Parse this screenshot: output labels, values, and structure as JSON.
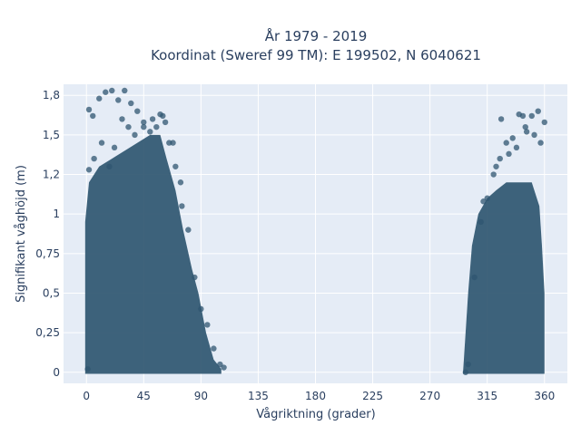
{
  "chart_data": {
    "type": "scatter",
    "title_lines": [
      "År 1979 - 2019",
      "Koordinat (Sweref 99 TM): E 199502, N 6040621"
    ],
    "xlabel": "Vågriktning (grader)",
    "ylabel": "Signifikant våghöjd (m)",
    "xlim": [
      -18,
      378
    ],
    "ylim": [
      -0.07,
      1.82
    ],
    "x_ticks": [
      0,
      45,
      90,
      135,
      180,
      225,
      270,
      315,
      360
    ],
    "x_tick_labels": [
      "0",
      "45",
      "90",
      "135",
      "180",
      "225",
      "270",
      "315",
      "360"
    ],
    "y_ticks": [
      0,
      0.25,
      0.5,
      0.75,
      1,
      1.25,
      1.5,
      1.75
    ],
    "y_tick_labels": [
      "0",
      "0,25",
      "0,5",
      "0,75",
      "1",
      "1,2",
      "1,5",
      "1,8"
    ],
    "grid": true,
    "marker_color": "#2f5670",
    "plot_background": "#e5ecf6",
    "series": [
      {
        "x": [
          2,
          5,
          10,
          15,
          20,
          25,
          30,
          35,
          40,
          45,
          50,
          55,
          60,
          65,
          70,
          75,
          80,
          85,
          90,
          95,
          100,
          105,
          108,
          1,
          2,
          6,
          12,
          18,
          22,
          28,
          33,
          38,
          45,
          52,
          58,
          62,
          68,
          74,
          298,
          300,
          305,
          310,
          315,
          320,
          325,
          330,
          335,
          340,
          345,
          350,
          355,
          360,
          312,
          322,
          332,
          338,
          346,
          352,
          357,
          326,
          343
        ],
        "y": [
          1.66,
          1.62,
          1.73,
          1.77,
          1.78,
          1.72,
          1.78,
          1.7,
          1.65,
          1.58,
          1.52,
          1.55,
          1.62,
          1.45,
          1.3,
          1.05,
          0.9,
          0.6,
          0.4,
          0.3,
          0.15,
          0.05,
          0.03,
          0.02,
          1.28,
          1.35,
          1.45,
          1.3,
          1.42,
          1.6,
          1.55,
          1.5,
          1.55,
          1.6,
          1.63,
          1.58,
          1.45,
          1.2,
          0,
          0.05,
          0.6,
          0.95,
          1.1,
          1.25,
          1.35,
          1.45,
          1.48,
          1.63,
          1.55,
          1.62,
          1.65,
          1.58,
          1.08,
          1.3,
          1.38,
          1.42,
          1.52,
          1.5,
          1.45,
          1.6,
          1.62
        ]
      }
    ]
  }
}
